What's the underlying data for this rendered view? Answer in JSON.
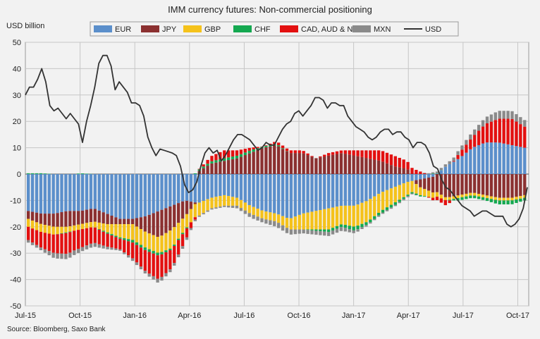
{
  "chart_data": {
    "type": "bar",
    "stacked": true,
    "title": "IMM currency futures: Non-commercial  positioning",
    "ylabel": "USD billion",
    "source": "Source: Bloomberg, Saxo Bank",
    "ylim": [
      -50,
      50
    ],
    "y_ticks": [
      "50",
      "40",
      "30",
      "20",
      "10",
      "0",
      "-10",
      "-20",
      "-30",
      "-40",
      "-50"
    ],
    "y_tick_values": [
      50,
      40,
      30,
      20,
      10,
      0,
      -10,
      -20,
      -30,
      -40,
      -50
    ],
    "x_ticks": [
      "Jul-15",
      "Oct-15",
      "Jan-16",
      "Apr-16",
      "Jul-16",
      "Oct-16",
      "Jan-17",
      "Apr-17",
      "Jul-17",
      "Oct-17"
    ],
    "series_colors": {
      "EUR": "#5b8fcb",
      "JPY": "#8b3030",
      "GBP": "#f5c21b",
      "CHF": "#14a850",
      "CADAUDNZD": "#e31010",
      "MXN": "#8a8a8a",
      "USD": "#333333"
    },
    "legend": [
      "EUR",
      "JPY",
      "GBP",
      "CHF",
      "CAD, AUD & NZD",
      "MXN",
      "USD"
    ],
    "legend_keys": [
      "EUR",
      "JPY",
      "GBP",
      "CHF",
      "CADAUDNZD",
      "MXN",
      "USD"
    ],
    "anchors": {
      "EUR": [
        -14,
        -15,
        -15,
        -14,
        -14,
        -13,
        -15,
        -17,
        -17,
        -16,
        -14,
        -12,
        -10,
        -11,
        -9,
        -8,
        -9,
        -12,
        -14,
        -15,
        -17,
        -15,
        -14,
        -13,
        -12,
        -12,
        -10,
        -7,
        -5,
        -3,
        -2,
        -1,
        3,
        6,
        10,
        12,
        12,
        11,
        10
      ],
      "JPY": [
        -3,
        -4,
        -5,
        -6,
        -5,
        -5,
        -4,
        -2,
        -2,
        -6,
        -10,
        -9,
        -6,
        1,
        4,
        5,
        6,
        8,
        10,
        11,
        8,
        8,
        6,
        7,
        8,
        7,
        6,
        5,
        3,
        2,
        -3,
        -6,
        -9,
        -8,
        -7,
        -8,
        -9,
        -9,
        -8
      ],
      "GBP": [
        -3,
        -3,
        -3,
        -2,
        -2,
        -2,
        -3,
        -5,
        -6,
        -6,
        -6,
        -7,
        -5,
        -5,
        -4,
        -4,
        -3,
        -3,
        -3,
        -3,
        -4,
        -6,
        -7,
        -8,
        -7,
        -8,
        -8,
        -7,
        -6,
        -5,
        -3,
        -2,
        -1,
        -1,
        -1,
        -1,
        -1,
        -1,
        -1
      ],
      "CHF": [
        0.3,
        0.3,
        0,
        -0.3,
        0.3,
        0,
        -0.5,
        -0.5,
        -1,
        -1,
        -1,
        -0.5,
        -0.5,
        0.5,
        0.8,
        1,
        1,
        1,
        0.5,
        0.5,
        0,
        0,
        -0.5,
        -1,
        -1,
        -1.5,
        -1,
        -1,
        -1,
        -0.5,
        -0.5,
        0.2,
        0,
        -1,
        -1,
        -1,
        -1.5,
        -1.5,
        -1
      ],
      "CADAUDNZD": [
        -5,
        -6,
        -7,
        -8,
        -7,
        -6,
        -5,
        -4,
        -6,
        -8,
        -9,
        -7,
        -4,
        0,
        2,
        3,
        2,
        1,
        0,
        1,
        1,
        1,
        0,
        1,
        1,
        2,
        3,
        4,
        4,
        3,
        1,
        -1,
        -2,
        2,
        4,
        7,
        9,
        10,
        8
      ],
      "MXN": [
        -1,
        -1,
        -2,
        -2,
        -1.5,
        -1.5,
        -1,
        -0.5,
        -1,
        -1,
        -1.5,
        -1,
        -1,
        -0.5,
        -0.5,
        -0.5,
        -1,
        -1.5,
        -1.5,
        -2,
        -2,
        -1.5,
        -1.5,
        -1.5,
        -1.5,
        -1,
        -0.5,
        -0.5,
        -0.5,
        -0.5,
        0,
        0.5,
        1,
        1.5,
        2,
        2.5,
        3,
        3,
        2.5
      ]
    },
    "usd_line": [
      30,
      33,
      33,
      36,
      40,
      35,
      26,
      24,
      25,
      23,
      21,
      23,
      21,
      19,
      12,
      20,
      26,
      33,
      42,
      45,
      45,
      41,
      32,
      35,
      33,
      31,
      27,
      27,
      26,
      22,
      14,
      10,
      7,
      9.5,
      9,
      8.5,
      8,
      7,
      3,
      -4,
      -7,
      -6,
      -3,
      3,
      8,
      10,
      8,
      9,
      5,
      7,
      10,
      13,
      15,
      15,
      14,
      13,
      11,
      9,
      10,
      12,
      11,
      11,
      14,
      17,
      19,
      20,
      23,
      24,
      22,
      24,
      26,
      29,
      29,
      28,
      25,
      27,
      27,
      26,
      26,
      22,
      20,
      18,
      17,
      16,
      14,
      13,
      14,
      16,
      17,
      17,
      15,
      16,
      16,
      14,
      13,
      10,
      12,
      12,
      11,
      8,
      3,
      2,
      -2,
      -5,
      -6,
      -8,
      -10,
      -12,
      -13,
      -14,
      -16,
      -15,
      -14,
      -14,
      -15,
      -16,
      -16,
      -16,
      -19,
      -20,
      -19,
      -17,
      -13,
      -5
    ]
  }
}
